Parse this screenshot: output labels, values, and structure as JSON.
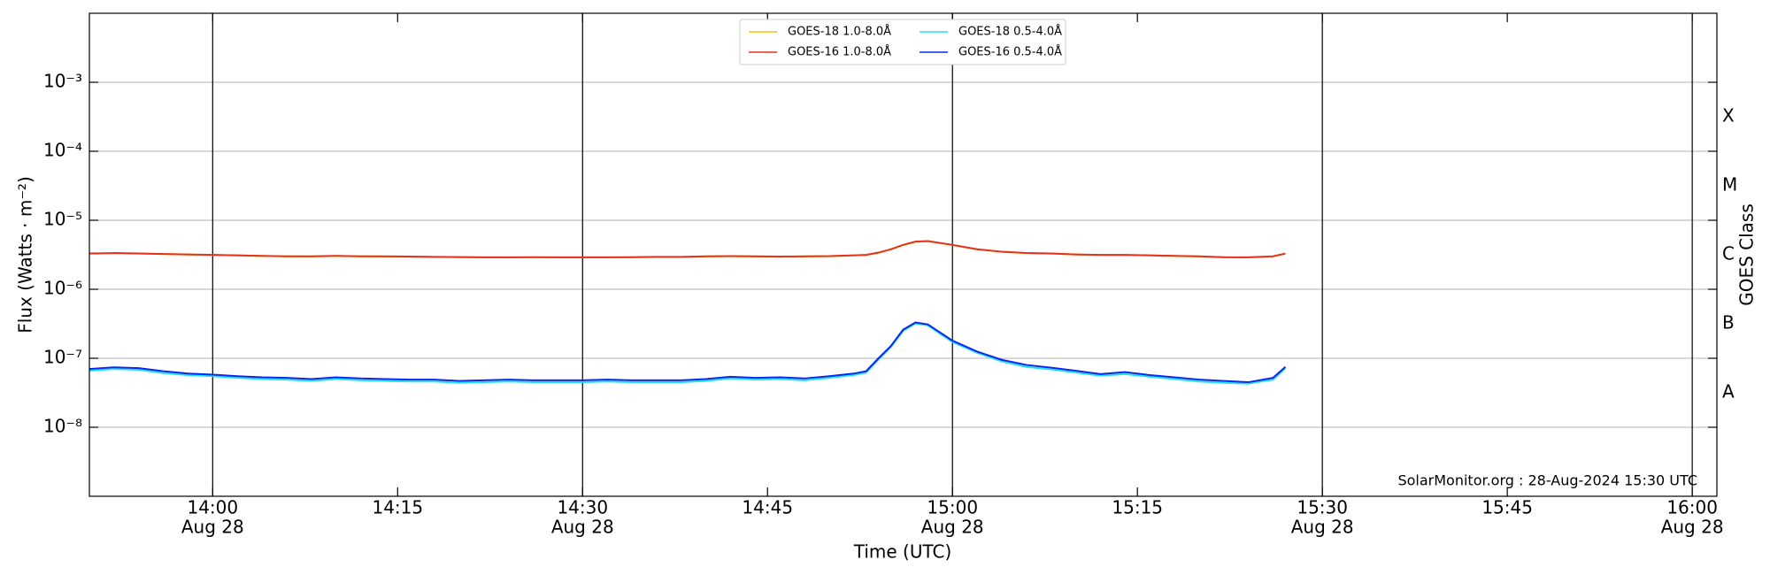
{
  "chart_data": {
    "type": "line",
    "y_label": "Flux (Watts · m⁻²)",
    "x_label": "Time (UTC)",
    "y2_label": "GOES Class",
    "annotation": "SolarMonitor.org : 28-Aug-2024 15:30 UTC",
    "log_y": true,
    "grid": true,
    "legend": "top",
    "x": [
      "13:50",
      "13:52",
      "13:54",
      "13:56",
      "13:58",
      "14:00",
      "14:02",
      "14:04",
      "14:06",
      "14:08",
      "14:10",
      "14:12",
      "14:14",
      "14:16",
      "14:18",
      "14:20",
      "14:22",
      "14:24",
      "14:26",
      "14:28",
      "14:30",
      "14:32",
      "14:34",
      "14:36",
      "14:38",
      "14:40",
      "14:42",
      "14:44",
      "14:46",
      "14:48",
      "14:50",
      "14:52",
      "14:53",
      "14:54",
      "14:55",
      "14:56",
      "14:57",
      "14:58",
      "15:00",
      "15:02",
      "15:04",
      "15:06",
      "15:08",
      "15:10",
      "15:12",
      "15:14",
      "15:16",
      "15:18",
      "15:20",
      "15:22",
      "15:24",
      "15:26",
      "15:27"
    ],
    "series": [
      {
        "name": "GOES-18 1.0-8.0Å",
        "color": "#f2c40c",
        "values": [
          3.28e-06,
          3.33e-06,
          3.28e-06,
          3.24e-06,
          3.19e-06,
          3.14e-06,
          3.09e-06,
          3.04e-06,
          3e-06,
          2.99e-06,
          3.04e-06,
          3e-06,
          2.99e-06,
          2.97e-06,
          2.94e-06,
          2.92e-06,
          2.9e-06,
          2.89e-06,
          2.91e-06,
          2.9e-06,
          2.89e-06,
          2.9e-06,
          2.91e-06,
          2.94e-06,
          2.94e-06,
          2.99e-06,
          3.01e-06,
          2.99e-06,
          2.97e-06,
          2.99e-06,
          3.01e-06,
          3.09e-06,
          3.14e-06,
          3.38e-06,
          3.78e-06,
          4.38e-06,
          4.88e-06,
          4.98e-06,
          4.38e-06,
          3.79e-06,
          3.49e-06,
          3.34e-06,
          3.29e-06,
          3.19e-06,
          3.14e-06,
          3.14e-06,
          3.09e-06,
          3.04e-06,
          2.99e-06,
          2.91e-06,
          2.89e-06,
          2.99e-06,
          3.28e-06
        ]
      },
      {
        "name": "GOES-16 1.0-8.0Å",
        "color": "#e8301c",
        "values": [
          3.3e-06,
          3.35e-06,
          3.3e-06,
          3.25e-06,
          3.2e-06,
          3.15e-06,
          3.1e-06,
          3.05e-06,
          3e-06,
          3e-06,
          3.05e-06,
          3e-06,
          3e-06,
          2.98e-06,
          2.95e-06,
          2.93e-06,
          2.9e-06,
          2.9e-06,
          2.92e-06,
          2.9e-06,
          2.9e-06,
          2.9e-06,
          2.92e-06,
          2.95e-06,
          2.95e-06,
          3e-06,
          3.02e-06,
          3e-06,
          2.98e-06,
          3e-06,
          3.02e-06,
          3.1e-06,
          3.15e-06,
          3.4e-06,
          3.8e-06,
          4.4e-06,
          4.9e-06,
          5e-06,
          4.4e-06,
          3.8e-06,
          3.5e-06,
          3.35e-06,
          3.3e-06,
          3.2e-06,
          3.15e-06,
          3.15e-06,
          3.1e-06,
          3.05e-06,
          3e-06,
          2.92e-06,
          2.9e-06,
          3e-06,
          3.3e-06
        ]
      },
      {
        "name": "GOES-18 0.5-4.0Å",
        "color": "#22e0f0",
        "values": [
          6.6e-08,
          7e-08,
          6.8e-08,
          6.1e-08,
          5.7e-08,
          5.5e-08,
          5.2e-08,
          5e-08,
          4.9e-08,
          4.7e-08,
          5e-08,
          4.8e-08,
          4.7e-08,
          4.6e-08,
          4.6e-08,
          4.4e-08,
          4.5e-08,
          4.6e-08,
          4.5e-08,
          4.5e-08,
          4.5e-08,
          4.6e-08,
          4.5e-08,
          4.5e-08,
          4.5e-08,
          4.7e-08,
          5.1e-08,
          4.9e-08,
          5e-08,
          4.8e-08,
          5.2e-08,
          5.7e-08,
          6.2e-08,
          9.6e-08,
          1.45e-07,
          2.5e-07,
          3.2e-07,
          3e-07,
          1.72e-07,
          1.2e-07,
          9e-08,
          7.5e-08,
          6.9e-08,
          6.2e-08,
          5.6e-08,
          5.9e-08,
          5.4e-08,
          5e-08,
          4.6e-08,
          4.4e-08,
          4.3e-08,
          4.9e-08,
          7.2e-08
        ]
      },
      {
        "name": "GOES-16 0.5-4.0Å",
        "color": "#0a28f0",
        "values": [
          7e-08,
          7.4e-08,
          7.2e-08,
          6.5e-08,
          6e-08,
          5.8e-08,
          5.5e-08,
          5.3e-08,
          5.2e-08,
          5e-08,
          5.3e-08,
          5.1e-08,
          5e-08,
          4.9e-08,
          4.9e-08,
          4.7e-08,
          4.8e-08,
          4.9e-08,
          4.8e-08,
          4.8e-08,
          4.8e-08,
          4.9e-08,
          4.8e-08,
          4.8e-08,
          4.8e-08,
          5e-08,
          5.4e-08,
          5.2e-08,
          5.3e-08,
          5.1e-08,
          5.5e-08,
          6e-08,
          6.5e-08,
          1e-07,
          1.5e-07,
          2.6e-07,
          3.3e-07,
          3.1e-07,
          1.8e-07,
          1.25e-07,
          9.5e-08,
          8e-08,
          7.3e-08,
          6.6e-08,
          5.9e-08,
          6.3e-08,
          5.7e-08,
          5.3e-08,
          4.9e-08,
          4.7e-08,
          4.5e-08,
          5.2e-08,
          7.5e-08
        ]
      }
    ],
    "xlim": [
      "13:50",
      "16:02"
    ],
    "xticks": [
      "14:00",
      "14:15",
      "14:30",
      "14:45",
      "15:00",
      "15:15",
      "15:30",
      "15:45",
      "16:00"
    ],
    "xtick_sublabels": [
      "Aug 28",
      null,
      "Aug 28",
      null,
      "Aug 28",
      null,
      "Aug 28",
      null,
      "Aug 28"
    ],
    "vlines": [
      "14:00",
      "14:30",
      "15:00",
      "15:30",
      "16:00"
    ],
    "ylim": [
      1e-09,
      0.01
    ],
    "yticks": [
      {
        "value": 1e-08,
        "label": "10⁻⁸"
      },
      {
        "value": 1e-07,
        "label": "10⁻⁷"
      },
      {
        "value": 1e-06,
        "label": "10⁻⁶"
      },
      {
        "value": 1e-05,
        "label": "10⁻⁵"
      },
      {
        "value": 0.0001,
        "label": "10⁻⁴"
      },
      {
        "value": 0.001,
        "label": "10⁻³"
      }
    ],
    "y2lim": [
      1e-09,
      0.01
    ],
    "y2ticks": [
      {
        "value": 3.16e-08,
        "label": "A"
      },
      {
        "value": 3.16e-07,
        "label": "B"
      },
      {
        "value": 3.16e-06,
        "label": "C"
      },
      {
        "value": 3.16e-05,
        "label": "M"
      },
      {
        "value": 0.000316,
        "label": "X"
      }
    ]
  }
}
